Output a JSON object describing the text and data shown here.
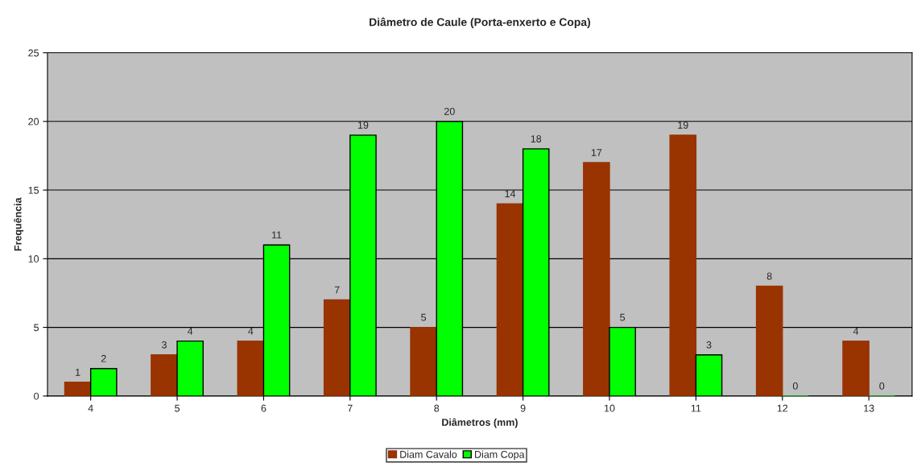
{
  "chart_data": {
    "type": "bar",
    "title": "Diâmetro de Caule (Porta-enxerto e Copa)",
    "xlabel": "Diâmetros (mm)",
    "ylabel": "Frequência",
    "categories": [
      "4",
      "5",
      "6",
      "7",
      "8",
      "9",
      "10",
      "11",
      "12",
      "13"
    ],
    "series": [
      {
        "name": "Diam Cavalo",
        "color": "#993300",
        "values": [
          1,
          3,
          4,
          7,
          5,
          14,
          17,
          19,
          8,
          4
        ]
      },
      {
        "name": "Diam Copa",
        "color": "#00ff00",
        "values": [
          2,
          4,
          11,
          19,
          20,
          18,
          5,
          3,
          0,
          0
        ]
      }
    ],
    "ylim": [
      0,
      25
    ],
    "yticks": [
      0,
      5,
      10,
      15,
      20,
      25
    ],
    "grid": "y",
    "legend": "bottom",
    "data_labels": true
  }
}
